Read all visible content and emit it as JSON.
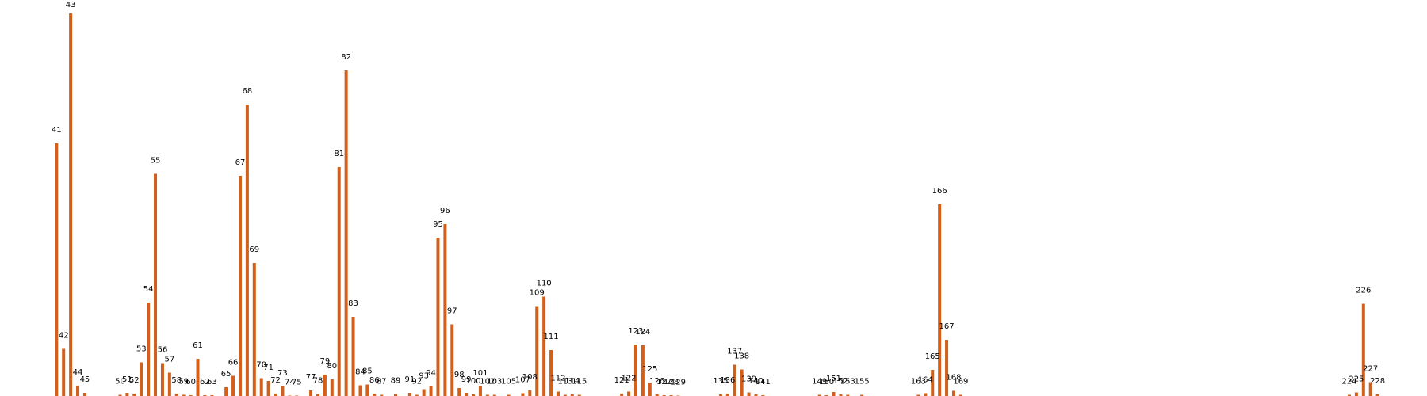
{
  "chart_data": {
    "type": "bar",
    "title": "",
    "xlabel": "",
    "ylabel": "",
    "grid": false,
    "axes_visible": false,
    "xlim": [
      33,
      235
    ],
    "ylim": [
      0,
      100
    ],
    "bar_color": "#d2601a",
    "label_color": "#000000",
    "points": [
      {
        "x": 41,
        "label": "41",
        "value": 63.8
      },
      {
        "x": 42,
        "label": "42",
        "value": 11.9
      },
      {
        "x": 43,
        "label": "43",
        "value": 96.6
      },
      {
        "x": 44,
        "label": "44",
        "value": 2.6
      },
      {
        "x": 45,
        "label": "45",
        "value": 0.8
      },
      {
        "x": 50,
        "label": "50",
        "value": 0.3
      },
      {
        "x": 51,
        "label": "51",
        "value": 0.8
      },
      {
        "x": 52,
        "label": "52",
        "value": 0.6
      },
      {
        "x": 53,
        "label": "53",
        "value": 8.5
      },
      {
        "x": 54,
        "label": "54",
        "value": 23.6
      },
      {
        "x": 55,
        "label": "55",
        "value": 56.1
      },
      {
        "x": 56,
        "label": "56",
        "value": 8.3
      },
      {
        "x": 57,
        "label": "57",
        "value": 5.9
      },
      {
        "x": 58,
        "label": "58",
        "value": 0.6
      },
      {
        "x": 59,
        "label": "59",
        "value": 0.3
      },
      {
        "x": 60,
        "label": "60",
        "value": 0.2
      },
      {
        "x": 61,
        "label": "61",
        "value": 9.4
      },
      {
        "x": 62,
        "label": "62",
        "value": 0.2
      },
      {
        "x": 63,
        "label": "63",
        "value": 0.2
      },
      {
        "x": 65,
        "label": "65",
        "value": 2.2
      },
      {
        "x": 66,
        "label": "66",
        "value": 5.1
      },
      {
        "x": 67,
        "label": "67",
        "value": 55.6
      },
      {
        "x": 68,
        "label": "68",
        "value": 73.6
      },
      {
        "x": 69,
        "label": "69",
        "value": 33.6
      },
      {
        "x": 70,
        "label": "70",
        "value": 4.5
      },
      {
        "x": 71,
        "label": "71",
        "value": 3.8
      },
      {
        "x": 72,
        "label": "72",
        "value": 0.6
      },
      {
        "x": 73,
        "label": "73",
        "value": 2.4
      },
      {
        "x": 74,
        "label": "74",
        "value": 0.1
      },
      {
        "x": 75,
        "label": "75",
        "value": 0.1
      },
      {
        "x": 77,
        "label": "77",
        "value": 1.4
      },
      {
        "x": 78,
        "label": "78",
        "value": 0.5
      },
      {
        "x": 79,
        "label": "79",
        "value": 5.4
      },
      {
        "x": 80,
        "label": "80",
        "value": 4.2
      },
      {
        "x": 81,
        "label": "81",
        "value": 57.8
      },
      {
        "x": 82,
        "label": "82",
        "value": 82.2
      },
      {
        "x": 83,
        "label": "83",
        "value": 20.0
      },
      {
        "x": 84,
        "label": "84",
        "value": 2.7
      },
      {
        "x": 85,
        "label": "85",
        "value": 2.9
      },
      {
        "x": 86,
        "label": "86",
        "value": 0.6
      },
      {
        "x": 87,
        "label": "87",
        "value": 0.3
      },
      {
        "x": 89,
        "label": "89",
        "value": 0.5
      },
      {
        "x": 91,
        "label": "91",
        "value": 0.8
      },
      {
        "x": 92,
        "label": "92",
        "value": 0.3
      },
      {
        "x": 93,
        "label": "93",
        "value": 1.7
      },
      {
        "x": 94,
        "label": "94",
        "value": 2.4
      },
      {
        "x": 95,
        "label": "95",
        "value": 40.0
      },
      {
        "x": 96,
        "label": "96",
        "value": 43.4
      },
      {
        "x": 97,
        "label": "97",
        "value": 18.1
      },
      {
        "x": 98,
        "label": "98",
        "value": 2.0
      },
      {
        "x": 99,
        "label": "99",
        "value": 0.8
      },
      {
        "x": 100,
        "label": "100",
        "value": 0.4
      },
      {
        "x": 101,
        "label": "101",
        "value": 2.4
      },
      {
        "x": 102,
        "label": "102",
        "value": 0.3
      },
      {
        "x": 103,
        "label": "103",
        "value": 0.3
      },
      {
        "x": 105,
        "label": "105",
        "value": 0.3
      },
      {
        "x": 107,
        "label": "107",
        "value": 0.7
      },
      {
        "x": 108,
        "label": "108",
        "value": 1.4
      },
      {
        "x": 109,
        "label": "109",
        "value": 22.7
      },
      {
        "x": 110,
        "label": "110",
        "value": 25.1
      },
      {
        "x": 111,
        "label": "111",
        "value": 11.6
      },
      {
        "x": 112,
        "label": "112",
        "value": 1.1
      },
      {
        "x": 113,
        "label": "113",
        "value": 0.3
      },
      {
        "x": 114,
        "label": "114",
        "value": 0.4
      },
      {
        "x": 115,
        "label": "115",
        "value": 0.3
      },
      {
        "x": 121,
        "label": "121",
        "value": 0.6
      },
      {
        "x": 122,
        "label": "122",
        "value": 1.1
      },
      {
        "x": 123,
        "label": "123",
        "value": 13.0
      },
      {
        "x": 124,
        "label": "124",
        "value": 12.8
      },
      {
        "x": 125,
        "label": "125",
        "value": 3.4
      },
      {
        "x": 126,
        "label": "126",
        "value": 0.4
      },
      {
        "x": 127,
        "label": "127",
        "value": 0.2
      },
      {
        "x": 128,
        "label": "128",
        "value": 0.2
      },
      {
        "x": 129,
        "label": "129",
        "value": 0.1
      },
      {
        "x": 135,
        "label": "135",
        "value": 0.4
      },
      {
        "x": 136,
        "label": "136",
        "value": 0.6
      },
      {
        "x": 137,
        "label": "137",
        "value": 7.9
      },
      {
        "x": 138,
        "label": "138",
        "value": 6.7
      },
      {
        "x": 139,
        "label": "139",
        "value": 0.9
      },
      {
        "x": 140,
        "label": "140",
        "value": 0.4
      },
      {
        "x": 141,
        "label": "141",
        "value": 0.2
      },
      {
        "x": 149,
        "label": "149",
        "value": 0.3
      },
      {
        "x": 150,
        "label": "150",
        "value": 0.2
      },
      {
        "x": 151,
        "label": "151",
        "value": 1.0
      },
      {
        "x": 152,
        "label": "152",
        "value": 0.4
      },
      {
        "x": 153,
        "label": "153",
        "value": 0.3
      },
      {
        "x": 155,
        "label": "155",
        "value": 0.3
      },
      {
        "x": 163,
        "label": "163",
        "value": 0.3
      },
      {
        "x": 164,
        "label": "164",
        "value": 0.7
      },
      {
        "x": 165,
        "label": "165",
        "value": 6.6
      },
      {
        "x": 166,
        "label": "166",
        "value": 48.4
      },
      {
        "x": 167,
        "label": "167",
        "value": 14.2
      },
      {
        "x": 168,
        "label": "168",
        "value": 1.3
      },
      {
        "x": 169,
        "label": "169",
        "value": 0.3
      },
      {
        "x": 224,
        "label": "224",
        "value": 0.3
      },
      {
        "x": 225,
        "label": "225",
        "value": 0.9
      },
      {
        "x": 226,
        "label": "226",
        "value": 23.3
      },
      {
        "x": 227,
        "label": "227",
        "value": 3.5
      },
      {
        "x": 228,
        "label": "228",
        "value": 0.4
      }
    ]
  }
}
